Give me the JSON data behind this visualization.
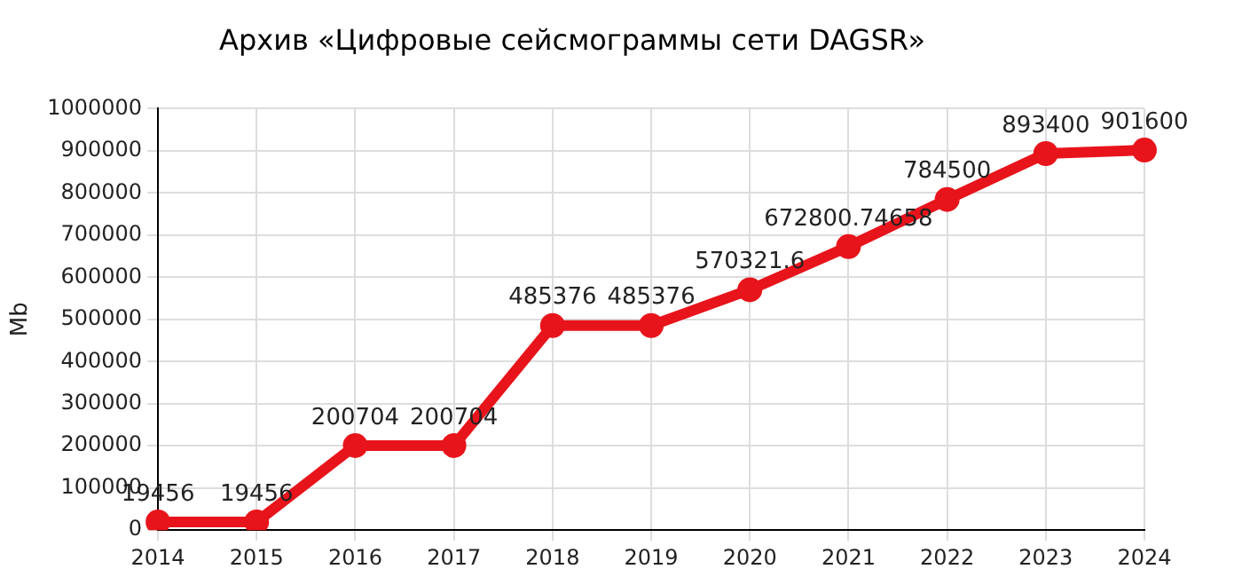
{
  "chart_data": {
    "type": "line",
    "title": "Архив «Цифровые сейсмограммы сети DAGSR»",
    "ylabel": "Mb",
    "categories": [
      "2014",
      "2015",
      "2016",
      "2017",
      "2018",
      "2019",
      "2020",
      "2021",
      "2022",
      "2023",
      "2024"
    ],
    "series": [
      {
        "color": "#e8141b",
        "values": [
          19456,
          19456,
          200704,
          200704,
          485376,
          485376,
          570321.6,
          672800.74658,
          784500,
          893400,
          901600
        ]
      }
    ],
    "ylim": [
      0,
      1000000
    ],
    "yticks": [
      0,
      100000,
      200000,
      300000,
      400000,
      500000,
      600000,
      700000,
      800000,
      900000,
      1000000
    ],
    "grid": true,
    "legend": false,
    "marker": "circle",
    "line_style": "solid",
    "data_labels": true
  }
}
